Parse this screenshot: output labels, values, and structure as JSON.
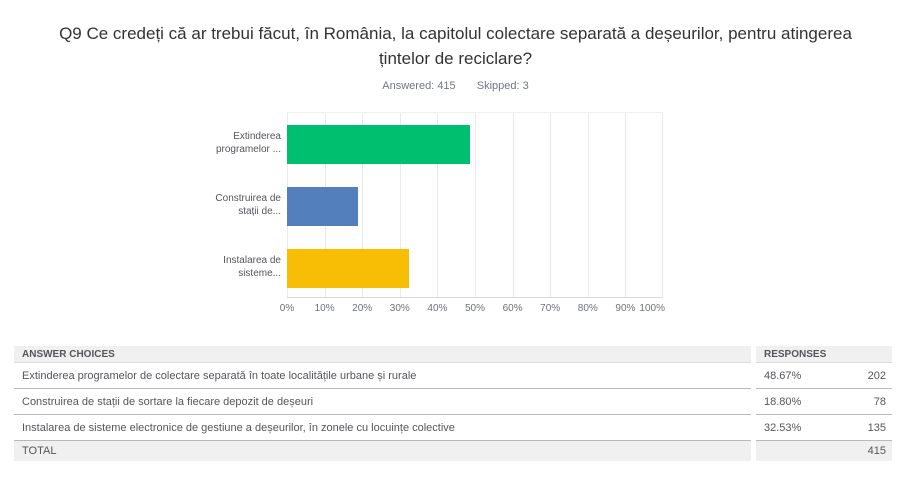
{
  "header": {
    "title": "Q9 Ce credeți că ar trebui făcut, în România, la capitolul colectare separată a deșeurilor, pentru atingerea țintelor de reciclare?",
    "answered_label": "Answered:",
    "answered_value": "415",
    "skipped_label": "Skipped:",
    "skipped_value": "3"
  },
  "chart_data": {
    "type": "bar",
    "orientation": "horizontal",
    "categories": [
      "Extinderea programelor ...",
      "Construirea de stații de...",
      "Instalarea de sisteme..."
    ],
    "category_label_lines": [
      [
        "Extinderea",
        "programelor ..."
      ],
      [
        "Construirea de",
        "stații de..."
      ],
      [
        "Instalarea de",
        "sisteme..."
      ]
    ],
    "values": [
      48.67,
      18.8,
      32.53
    ],
    "value_unit": "%",
    "colors": [
      "#00BF6F",
      "#5380BC",
      "#F8BD05"
    ],
    "xlim": [
      0,
      100
    ],
    "x_ticks": [
      "0%",
      "10%",
      "20%",
      "30%",
      "40%",
      "50%",
      "60%",
      "70%",
      "80%",
      "90%",
      "100%"
    ],
    "grid": true,
    "legend": false,
    "title": "",
    "xlabel": "",
    "ylabel": ""
  },
  "table": {
    "answer_header": "ANSWER CHOICES",
    "responses_header": "RESPONSES",
    "rows": [
      {
        "answer": "Extinderea programelor de colectare separată în toate localitățile urbane și rurale",
        "percent": "48.67%",
        "count": "202"
      },
      {
        "answer": "Construirea de stații de sortare la fiecare depozit de deșeuri",
        "percent": "18.80%",
        "count": "78"
      },
      {
        "answer": "Instalarea de sisteme electronice de gestiune a deșeurilor, în zonele cu locuințe colective",
        "percent": "32.53%",
        "count": "135"
      }
    ],
    "total_label": "TOTAL",
    "total_count": "415"
  }
}
